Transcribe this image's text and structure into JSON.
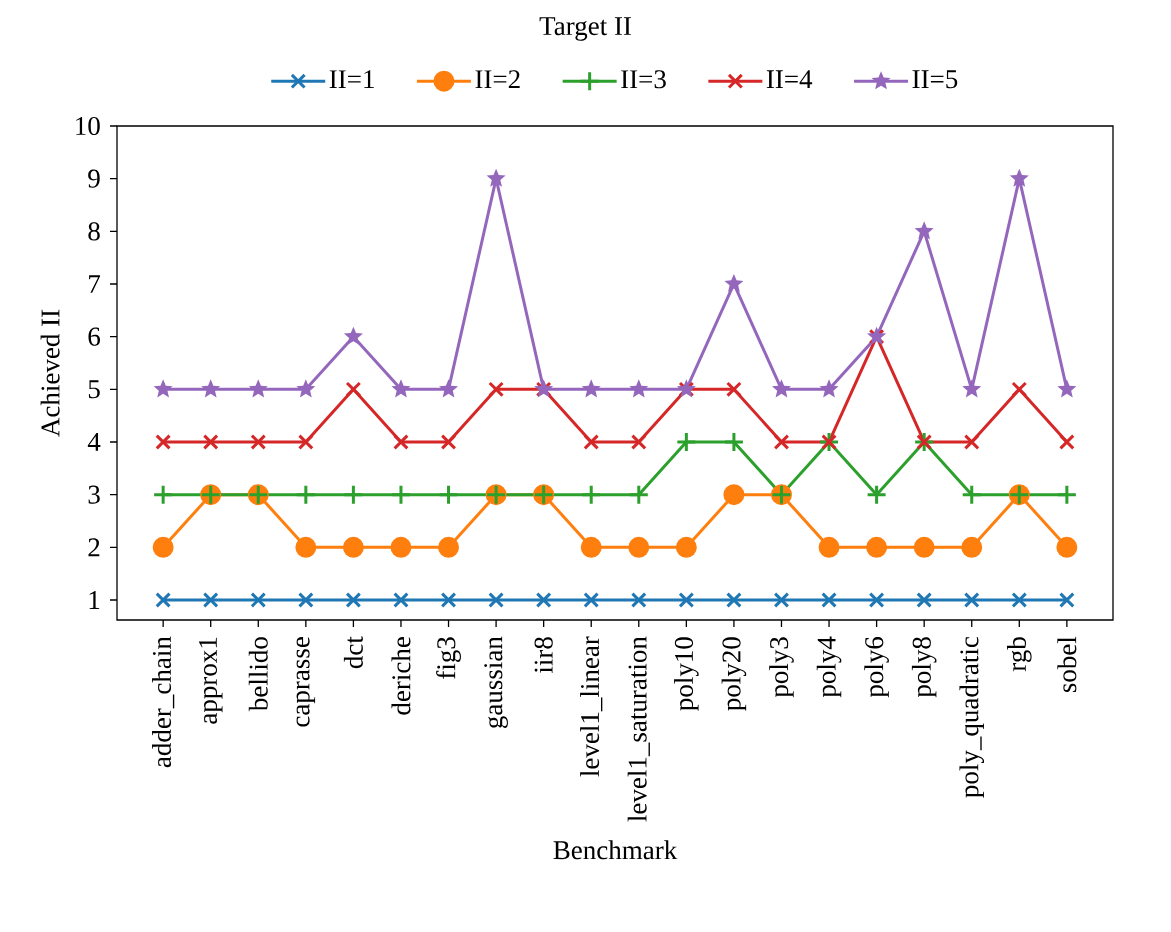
{
  "chart_data": {
    "type": "line",
    "xlabel": "Benchmark",
    "ylabel": "Achieved II",
    "legend_title": "Target II",
    "legend": "top",
    "categories": [
      "adder_chain",
      "approx1",
      "bellido",
      "caprasse",
      "dct",
      "deriche",
      "fig3",
      "gaussian",
      "iir8",
      "level1_linear",
      "level1_saturation",
      "poly10",
      "poly20",
      "poly3",
      "poly4",
      "poly6",
      "poly8",
      "poly_quadratic",
      "rgb",
      "sobel"
    ],
    "ylim": [
      0.62,
      10
    ],
    "yticks": [
      1,
      2,
      3,
      4,
      5,
      6,
      7,
      8,
      9,
      10
    ],
    "grid": false,
    "line_style": "solid",
    "series": [
      {
        "name": "II=1",
        "color": "#1f77b4",
        "marker": "cross",
        "values": [
          1,
          1,
          1,
          1,
          1,
          1,
          1,
          1,
          1,
          1,
          1,
          1,
          1,
          1,
          1,
          1,
          1,
          1,
          1,
          1
        ]
      },
      {
        "name": "II=2",
        "color": "#ff7f0e",
        "marker": "circle",
        "values": [
          2,
          3,
          3,
          2,
          2,
          2,
          2,
          3,
          3,
          2,
          2,
          2,
          3,
          3,
          2,
          2,
          2,
          2,
          3,
          2
        ]
      },
      {
        "name": "II=3",
        "color": "#2ca02c",
        "marker": "plus",
        "values": [
          3,
          3,
          3,
          3,
          3,
          3,
          3,
          3,
          3,
          3,
          3,
          4,
          4,
          3,
          4,
          3,
          4,
          3,
          3,
          3
        ]
      },
      {
        "name": "II=4",
        "color": "#d62728",
        "marker": "cross",
        "values": [
          4,
          4,
          4,
          4,
          5,
          4,
          4,
          5,
          5,
          4,
          4,
          5,
          5,
          4,
          4,
          6,
          4,
          4,
          5,
          4
        ]
      },
      {
        "name": "II=5",
        "color": "#9467bd",
        "marker": "star",
        "values": [
          5,
          5,
          5,
          5,
          6,
          5,
          5,
          9,
          5,
          5,
          5,
          5,
          7,
          5,
          5,
          6,
          8,
          5,
          9,
          5
        ]
      }
    ]
  }
}
